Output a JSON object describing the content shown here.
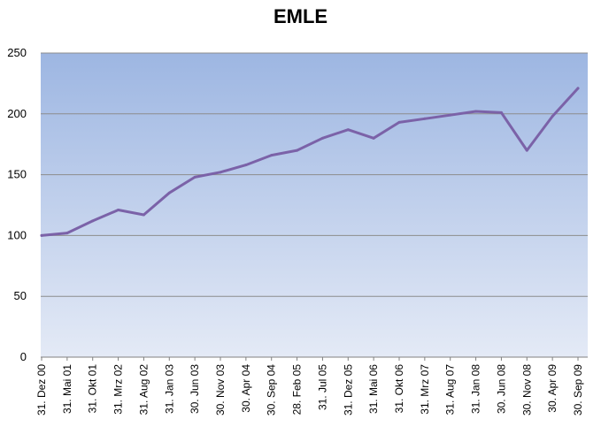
{
  "chart_data": {
    "type": "line",
    "title": "EMLE",
    "xlabel": "",
    "ylabel": "",
    "ylim": [
      0,
      250
    ],
    "yticks": [
      0,
      50,
      100,
      150,
      200,
      250
    ],
    "grid": true,
    "legend": "none",
    "x_tick_labels": [
      "31. Dez 00",
      "31. Mai 01",
      "31. Okt 01",
      "31. Mrz 02",
      "31. Aug 02",
      "31. Jan 03",
      "30. Jun 03",
      "30. Nov 03",
      "30. Apr 04",
      "30. Sep 04",
      "28. Feb 05",
      "31. Jul 05",
      "31. Dez 05",
      "31. Mai 06",
      "31. Okt 06",
      "31. Mrz 07",
      "31. Aug 07",
      "31. Jan 08",
      "30. Jun 08",
      "30. Nov 08",
      "30. Apr 09",
      "30. Sep 09"
    ],
    "series": [
      {
        "name": "",
        "color": "#7b62a8",
        "x": [
          "31. Dez 00",
          "31. Mai 01",
          "31. Okt 01",
          "31. Mrz 02",
          "31. Aug 02",
          "31. Jan 03",
          "30. Jun 03",
          "30. Nov 03",
          "30. Apr 04",
          "30. Sep 04",
          "28. Feb 05",
          "31. Jul 05",
          "31. Dez 05",
          "31. Mai 06",
          "31. Okt 06",
          "31. Mrz 07",
          "31. Aug 07",
          "31. Jan 08",
          "30. Jun 08",
          "30. Nov 08",
          "30. Apr 09",
          "30. Sep 09"
        ],
        "values": [
          100,
          102,
          112,
          121,
          117,
          135,
          148,
          152,
          158,
          166,
          170,
          180,
          187,
          180,
          193,
          196,
          199,
          202,
          201,
          170,
          198,
          221
        ]
      }
    ],
    "colors": {
      "background_top": "#9db6e2",
      "background_bottom": "#e4eaf6",
      "gridline": "#8c8c8c",
      "line": "#7b62a8"
    }
  }
}
